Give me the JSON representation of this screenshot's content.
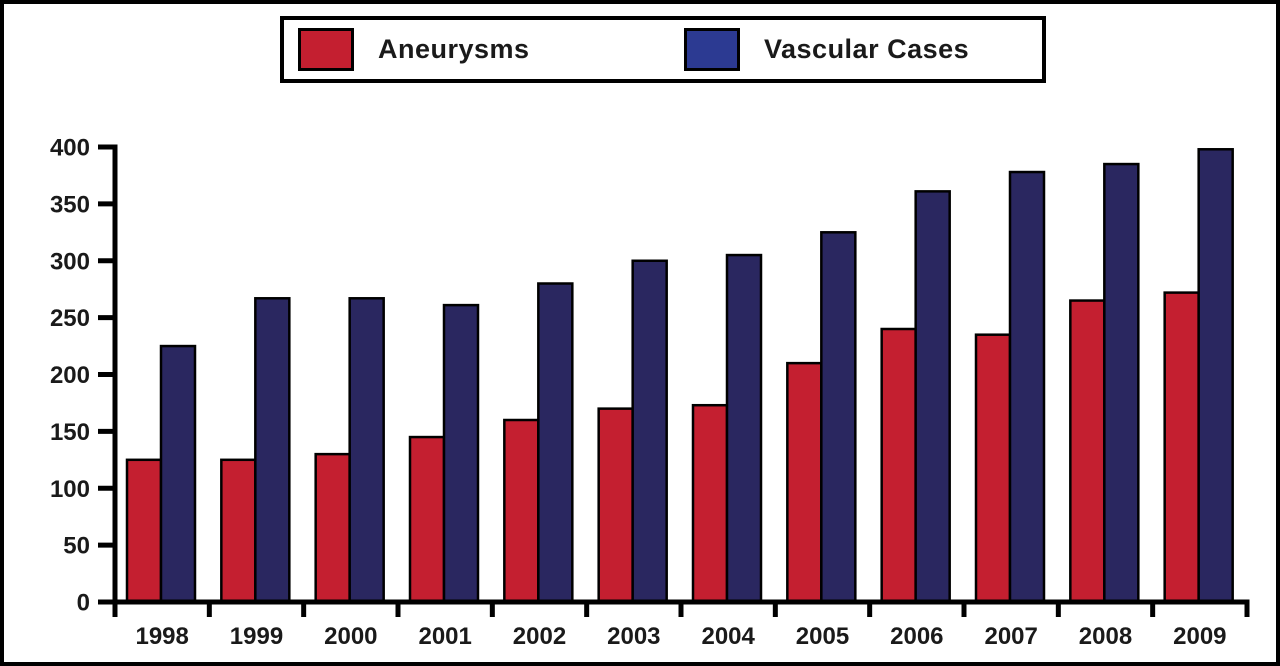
{
  "colors": {
    "aneurysms_bar": "#C41F30",
    "vascular_bar": "#2A2760",
    "vascular_legend_swatch": "#2C3A92",
    "axis": "#000000",
    "frame_border": "#000000",
    "background": "#FFFFFF"
  },
  "legend": {
    "position": "top-center",
    "items": [
      {
        "label": "Aneurysms",
        "swatch_color": "#C41F30"
      },
      {
        "label": "Vascular Cases",
        "swatch_color": "#2C3A92"
      }
    ]
  },
  "chart_data": {
    "type": "bar",
    "title": "",
    "xlabel": "",
    "ylabel": "",
    "categories": [
      "1998",
      "1999",
      "2000",
      "2001",
      "2002",
      "2003",
      "2004",
      "2005",
      "2006",
      "2007",
      "2008",
      "2009"
    ],
    "series": [
      {
        "name": "Aneurysms",
        "color": "#C41F30",
        "values": [
          125,
          125,
          130,
          145,
          160,
          170,
          173,
          210,
          240,
          235,
          265,
          272
        ]
      },
      {
        "name": "Vascular Cases",
        "color": "#2A2760",
        "values": [
          225,
          267,
          267,
          261,
          280,
          300,
          305,
          325,
          361,
          378,
          385,
          398
        ]
      }
    ],
    "ylim": [
      0,
      400
    ],
    "yticks": [
      0,
      50,
      100,
      150,
      200,
      250,
      300,
      350,
      400
    ],
    "grid": false,
    "legend_position": "top"
  }
}
